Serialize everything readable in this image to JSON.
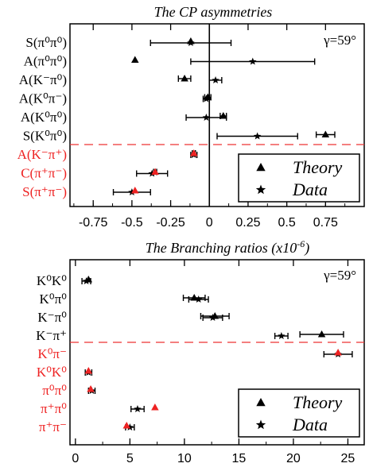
{
  "colors": {
    "theory_data_black": "#000000",
    "red_accent": "#ee2222",
    "dashed_line": "#ee3333"
  },
  "legend": {
    "theory_label": "Theory",
    "data_label": "Data",
    "theory_marker": "filled-triangle",
    "data_marker": "star"
  },
  "chart_data": [
    {
      "type": "scatter",
      "title": "The CP asymmetries",
      "annotation": "γ=59°",
      "xlim": [
        -0.9,
        1.0
      ],
      "xticks": [
        "-0.75",
        "-0.5",
        "-0.25",
        "0",
        "0.25",
        "0.5",
        "0.75"
      ],
      "xtick_values": [
        -0.75,
        -0.5,
        -0.25,
        0,
        0.25,
        0.5,
        0.75
      ],
      "red_from_index": 6,
      "categories": [
        "S(π⁰π⁰)",
        "A(π⁰π⁰)",
        "A(K⁻π⁰)",
        "A(K⁰π⁻)",
        "A(K⁰π⁰)",
        "S(K⁰π⁰)",
        "A(K⁻π⁺)",
        "C(π⁺π⁻)",
        "S(π⁺π⁻)"
      ],
      "theory": [
        {
          "x": -0.12,
          "err": null
        },
        {
          "x": -0.48,
          "err": null
        },
        {
          "x": -0.16,
          "err": 0.04
        },
        {
          "x": -0.01,
          "err": 0.02
        },
        {
          "x": 0.09,
          "err": 0.02
        },
        {
          "x": 0.75,
          "err": 0.06
        },
        {
          "x": -0.1,
          "err": 0.01
        },
        {
          "x": -0.35,
          "err": 0.01
        },
        {
          "x": -0.48,
          "err": null
        }
      ],
      "data": [
        {
          "x": -0.12,
          "err": 0.26
        },
        {
          "x": 0.28,
          "err": 0.4
        },
        {
          "x": 0.04,
          "err": 0.04
        },
        {
          "x": -0.02,
          "err": 0.02
        },
        {
          "x": -0.02,
          "err": 0.13
        },
        {
          "x": 0.31,
          "err": 0.26
        },
        {
          "x": -0.1,
          "err": 0.02
        },
        {
          "x": -0.37,
          "err": 0.1
        },
        {
          "x": -0.5,
          "err": 0.12
        }
      ]
    },
    {
      "type": "scatter",
      "title": "The Branching ratios (x10",
      "title_sup": "-6",
      "title_end": ")",
      "annotation": "γ=59°",
      "xlim": [
        -0.5,
        26.5
      ],
      "xticks": [
        "0",
        "5",
        "10",
        "15",
        "20",
        "25"
      ],
      "xtick_values": [
        0,
        5,
        10,
        15,
        20,
        25
      ],
      "red_from_index": 4,
      "categories": [
        "K⁰K⁰",
        "K⁰π⁰",
        "K⁻π⁰",
        "K⁻π⁺",
        "K⁰π⁻",
        "K⁰K⁰",
        "π⁰π⁰",
        "π⁺π⁰",
        "π⁺π⁻"
      ],
      "theory": [
        {
          "x": 1.2,
          "err": null
        },
        {
          "x": 10.9,
          "err": 1.0
        },
        {
          "x": 12.8,
          "err": 1.3
        },
        {
          "x": 22.6,
          "err": 2.0
        },
        {
          "x": 24.1,
          "err": null
        },
        {
          "x": 1.2,
          "err": null
        },
        {
          "x": 1.4,
          "err": null
        },
        {
          "x": 7.3,
          "err": null
        },
        {
          "x": 4.7,
          "err": null
        }
      ],
      "data": [
        {
          "x": 1.0,
          "err": 0.4
        },
        {
          "x": 11.3,
          "err": 0.9
        },
        {
          "x": 12.6,
          "err": 0.9
        },
        {
          "x": 18.9,
          "err": 0.6
        },
        {
          "x": 24.1,
          "err": 1.3
        },
        {
          "x": 1.2,
          "err": 0.3
        },
        {
          "x": 1.5,
          "err": 0.3
        },
        {
          "x": 5.7,
          "err": 0.6
        },
        {
          "x": 5.0,
          "err": 0.4
        }
      ]
    }
  ]
}
